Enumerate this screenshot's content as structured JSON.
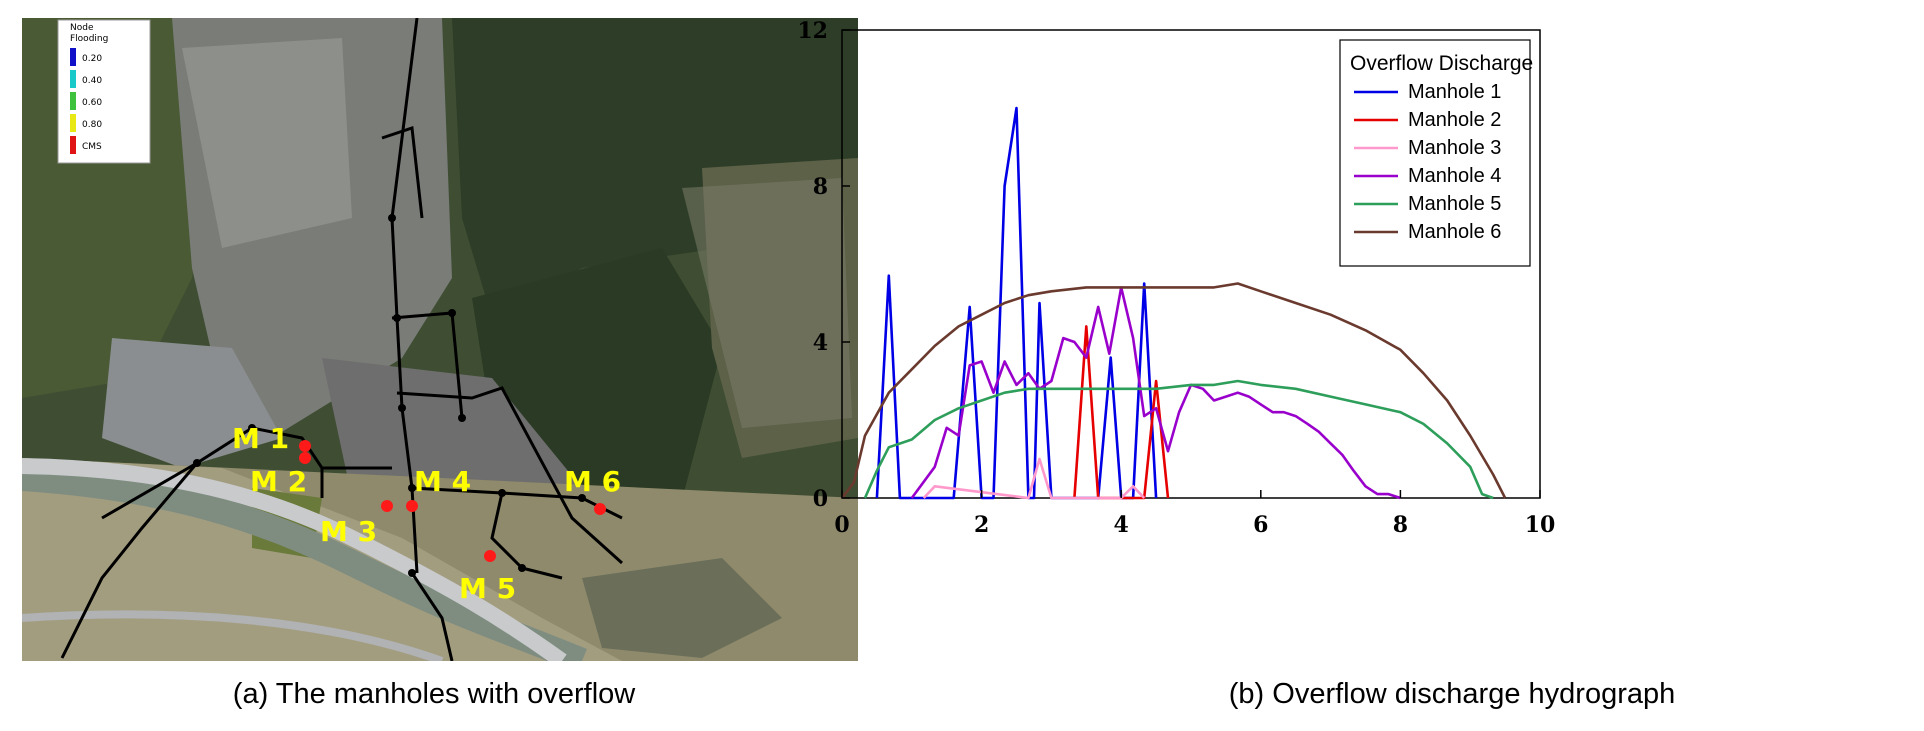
{
  "map": {
    "legend": {
      "title_line1": "Node",
      "title_line2": "Flooding",
      "items": [
        {
          "label": "0.20",
          "color": "#1010c8"
        },
        {
          "label": "0.40",
          "color": "#19c8c8"
        },
        {
          "label": "0.60",
          "color": "#3ec23e"
        },
        {
          "label": "0.80",
          "color": "#e8e814"
        },
        {
          "label": "CMS",
          "color": "#e01414"
        }
      ]
    },
    "manholes": [
      {
        "label": "M 1"
      },
      {
        "label": "M 2"
      },
      {
        "label": "M 3"
      },
      {
        "label": "M 4"
      },
      {
        "label": "M 5"
      },
      {
        "label": "M 6"
      }
    ],
    "caption": "(a) The manholes with overflow"
  },
  "chart": {
    "caption": "(b) Overflow discharge hydrograph",
    "legend_title": "Overflow  Discharge"
  },
  "chart_data": {
    "type": "line",
    "title": "",
    "xlabel": "",
    "ylabel": "",
    "xlim": [
      0,
      10
    ],
    "ylim": [
      0,
      12
    ],
    "xticks": [
      0,
      2,
      4,
      6,
      8,
      10
    ],
    "yticks": [
      0,
      4,
      8,
      12
    ],
    "grid": false,
    "legend": "top-right",
    "series": [
      {
        "name": "Manhole  1",
        "color": "#0000e6",
        "x": [
          0.5,
          0.67,
          0.83,
          1.6,
          1.83,
          2.0,
          2.17,
          2.33,
          2.5,
          2.67,
          2.75,
          2.83,
          3.0,
          3.67,
          3.85,
          4.0,
          4.17,
          4.33,
          4.5
        ],
        "y": [
          0,
          5.7,
          0,
          0,
          4.9,
          0,
          0,
          8.0,
          10.0,
          0,
          0,
          5.0,
          0,
          0,
          3.6,
          0,
          0,
          5.5,
          0
        ]
      },
      {
        "name": "Manhole  2",
        "color": "#e60000",
        "x": [
          3.33,
          3.5,
          3.67,
          4.33,
          4.5,
          4.67
        ],
        "y": [
          0,
          4.4,
          0,
          0,
          3.0,
          0
        ]
      },
      {
        "name": "Manhole  3",
        "color": "#ff99cc",
        "x": [
          1.17,
          1.33,
          2.67,
          2.83,
          3.0,
          4.0,
          4.17,
          4.33
        ],
        "y": [
          0,
          0.3,
          0,
          1.0,
          0,
          0,
          0.3,
          0
        ]
      },
      {
        "name": "Manhole  4",
        "color": "#9900cc",
        "x": [
          1.0,
          1.33,
          1.5,
          1.67,
          1.83,
          2.0,
          2.17,
          2.33,
          2.5,
          2.67,
          2.83,
          3.0,
          3.17,
          3.33,
          3.5,
          3.67,
          3.83,
          4.0,
          4.17,
          4.33,
          4.5,
          4.67,
          4.83,
          5.0,
          5.17,
          5.33,
          5.5,
          5.67,
          5.83,
          6.0,
          6.17,
          6.33,
          6.5,
          6.67,
          6.83,
          7.0,
          7.17,
          7.33,
          7.5,
          7.67,
          7.83,
          8.0
        ],
        "y": [
          0,
          0.8,
          1.8,
          1.6,
          3.4,
          3.5,
          2.7,
          3.5,
          2.9,
          3.2,
          2.8,
          3.0,
          4.1,
          4.0,
          3.6,
          4.9,
          3.7,
          5.4,
          4.1,
          2.1,
          2.3,
          1.2,
          2.2,
          2.9,
          2.8,
          2.5,
          2.6,
          2.7,
          2.6,
          2.4,
          2.2,
          2.2,
          2.1,
          1.9,
          1.7,
          1.4,
          1.1,
          0.7,
          0.3,
          0.1,
          0.1,
          0
        ]
      },
      {
        "name": "Manhole  5",
        "color": "#2e9e5b",
        "x": [
          0.33,
          0.5,
          0.67,
          1.0,
          1.33,
          1.67,
          2.0,
          2.33,
          2.67,
          3.0,
          3.5,
          4.0,
          4.5,
          5.0,
          5.33,
          5.67,
          6.0,
          6.5,
          7.0,
          7.5,
          8.0,
          8.33,
          8.67,
          9.0,
          9.17,
          9.33
        ],
        "y": [
          0,
          0.7,
          1.3,
          1.5,
          2.0,
          2.3,
          2.5,
          2.7,
          2.8,
          2.8,
          2.8,
          2.8,
          2.8,
          2.9,
          2.9,
          3.0,
          2.9,
          2.8,
          2.6,
          2.4,
          2.2,
          1.9,
          1.4,
          0.8,
          0.1,
          0
        ]
      },
      {
        "name": "Manhole  6",
        "color": "#6b3a2e",
        "x": [
          0,
          0.17,
          0.33,
          0.67,
          1.0,
          1.33,
          1.67,
          2.0,
          2.33,
          2.67,
          3.0,
          3.5,
          4.0,
          4.5,
          5.0,
          5.33,
          5.67,
          6.0,
          6.5,
          7.0,
          7.5,
          8.0,
          8.33,
          8.67,
          9.0,
          9.33,
          9.5
        ],
        "y": [
          0,
          0.4,
          1.6,
          2.7,
          3.3,
          3.9,
          4.4,
          4.7,
          5.0,
          5.2,
          5.3,
          5.4,
          5.4,
          5.4,
          5.4,
          5.4,
          5.5,
          5.3,
          5.0,
          4.7,
          4.3,
          3.8,
          3.2,
          2.5,
          1.6,
          0.6,
          0
        ]
      }
    ]
  }
}
